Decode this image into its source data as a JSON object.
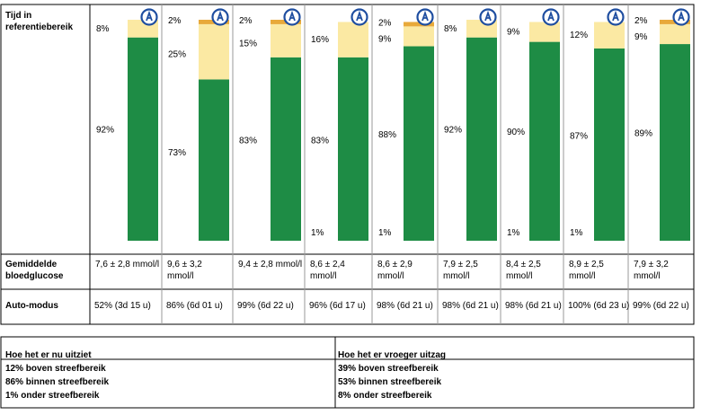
{
  "colors": {
    "green": "#1e8c45",
    "yellow": "#fbe9a3",
    "orange": "#e8a93a",
    "icon_ring": "#1f4ea0",
    "border": "#000000"
  },
  "row_labels": {
    "chart": "Tijd in referentiebereik",
    "glucose": "Gemiddelde bloedglucose",
    "auto": "Auto-modus"
  },
  "chart_data": {
    "type": "bar",
    "stacked": true,
    "title": "",
    "xlabel": "",
    "ylabel": "",
    "ylim": [
      0,
      100
    ],
    "series": [
      {
        "name": "",
        "color": "green",
        "values": [
          92,
          73,
          83,
          83,
          88,
          92,
          90,
          87,
          89
        ]
      },
      {
        "name": "",
        "color": "yellow",
        "values": [
          8,
          25,
          15,
          16,
          9,
          8,
          9,
          12,
          9
        ]
      },
      {
        "name": "",
        "color": "orange",
        "values": [
          0,
          2,
          2,
          0,
          2,
          0,
          0,
          0,
          2
        ]
      },
      {
        "name": "",
        "values": [
          0,
          0,
          0,
          1,
          1,
          0,
          1,
          1,
          0
        ]
      }
    ],
    "labels": [
      {
        "green": "92%",
        "yellow": "8%",
        "orange": "",
        "below": ""
      },
      {
        "green": "73%",
        "yellow": "25%",
        "orange": "2%",
        "below": ""
      },
      {
        "green": "83%",
        "yellow": "15%",
        "orange": "2%",
        "below": ""
      },
      {
        "green": "83%",
        "yellow": "16%",
        "orange": "",
        "below": "1%"
      },
      {
        "green": "88%",
        "yellow": "9%",
        "orange": "2%",
        "below": "1%"
      },
      {
        "green": "92%",
        "yellow": "8%",
        "orange": "",
        "below": ""
      },
      {
        "green": "90%",
        "yellow": "9%",
        "orange": "",
        "below": "1%"
      },
      {
        "green": "87%",
        "yellow": "12%",
        "orange": "",
        "below": "1%"
      },
      {
        "green": "89%",
        "yellow": "9%",
        "orange": "2%",
        "below": ""
      }
    ],
    "glucose": [
      "7,6 ± 2,8 mmol/l",
      "9,6 ± 3,2 mmol/l",
      "9,4 ± 2,8 mmol/l",
      "8,6 ± 2,4 mmol/l",
      "8,6 ± 2,9 mmol/l",
      "7,9 ± 2,5 mmol/l",
      "8,4 ± 2,5 mmol/l",
      "8,9 ± 2,5 mmol/l",
      "7,9 ± 3,2 mmol/l"
    ],
    "auto_mode": [
      "52% (3d 15 u)",
      "86% (6d 01 u)",
      "99% (6d 22 u)",
      "96% (6d 17 u)",
      "98% (6d 21 u)",
      "98% (6d 21 u)",
      "98% (6d 21 u)",
      "100% (6d 23 u)",
      "99% (6d 22 u)"
    ],
    "icon": "auto-mode-icon"
  },
  "summary": {
    "now": {
      "header": "Hoe het er nu uitziet",
      "lines": [
        "12% boven streefbereik",
        "86% binnen streefbereik",
        "1% onder streefbereik"
      ]
    },
    "before": {
      "header": "Hoe het er vroeger uitzag",
      "lines": [
        "39% boven streefbereik",
        "53% binnen streefbereik",
        "8% onder streefbereik"
      ]
    }
  }
}
